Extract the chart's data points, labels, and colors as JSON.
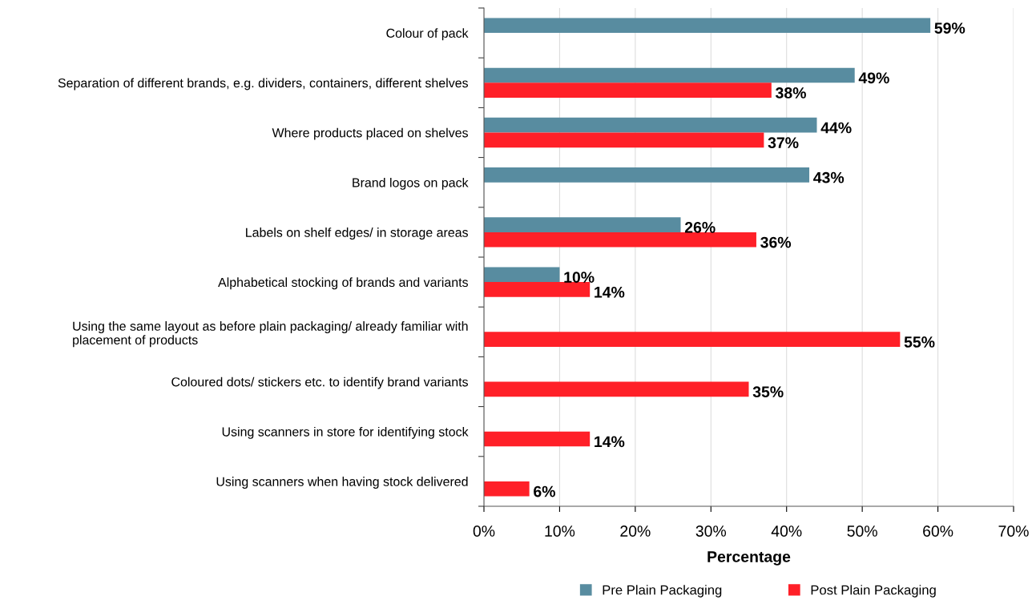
{
  "chart_data": {
    "type": "bar",
    "orientation": "horizontal",
    "xlabel": "Percentage",
    "categories": [
      "Colour of pack",
      "Separation of different brands, e.g. dividers, containers, different shelves",
      "Where products placed on shelves",
      "Brand logos on pack",
      "Labels on shelf edges/ in storage areas",
      "Alphabetical stocking of brands and variants",
      "Using the same layout as before plain packaging/ already familiar with\nplacement of products",
      "Coloured dots/ stickers etc. to identify brand variants",
      "Using scanners in store for identifying stock",
      "Using scanners when having stock delivered"
    ],
    "series": [
      {
        "name": "Pre Plain Packaging",
        "color": "#588ca0",
        "values": [
          59,
          49,
          44,
          43,
          26,
          10,
          null,
          null,
          null,
          null
        ],
        "value_labels": [
          "59%",
          "49%",
          "44%",
          "43%",
          "26%",
          "10%",
          null,
          null,
          null,
          null
        ]
      },
      {
        "name": "Post Plain Packaging",
        "color": "#ff2028",
        "values": [
          null,
          38,
          37,
          null,
          36,
          14,
          55,
          35,
          14,
          6
        ],
        "value_labels": [
          null,
          "38%",
          "37%",
          null,
          "36%",
          "14%",
          "55%",
          "35%",
          "14%",
          "6%"
        ]
      }
    ],
    "xlim": [
      0,
      70
    ],
    "xticks": [
      {
        "value": 0,
        "label": "0%"
      },
      {
        "value": 10,
        "label": "10%"
      },
      {
        "value": 20,
        "label": "20%"
      },
      {
        "value": 30,
        "label": "30%"
      },
      {
        "value": 40,
        "label": "40%"
      },
      {
        "value": 50,
        "label": "50%"
      },
      {
        "value": 60,
        "label": "60%"
      },
      {
        "value": 70,
        "label": "70%"
      }
    ],
    "grid": "x",
    "legend": "bottom"
  }
}
